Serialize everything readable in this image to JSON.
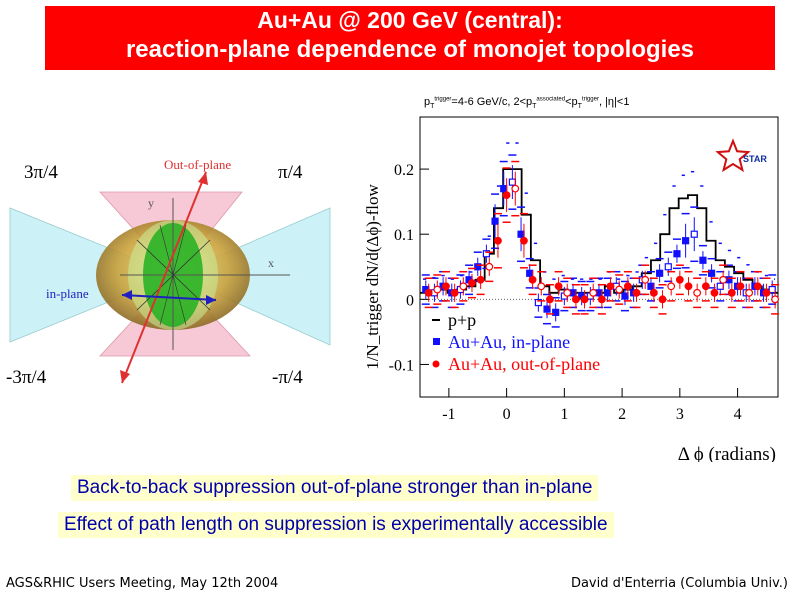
{
  "title": {
    "line1": "Au+Au @ 200 GeV (central):",
    "line2": "reaction-plane dependence of monojet topologies"
  },
  "diagram": {
    "angles": {
      "top_left": "3π/4",
      "top_right": "π/4",
      "bottom_left": "-3π/4",
      "bottom_right": "-π/4"
    },
    "labels": {
      "out_of_plane": "Out-of-plane",
      "in_plane": "in-plane",
      "axis_x": "x",
      "axis_y": "y"
    },
    "colors": {
      "in_plane_cone": "#ccf2f7",
      "out_of_plane_cone": "#f7c8d6",
      "overlap_ellipsoid": "#c9a13a",
      "inner_region": "#20b020",
      "out_arrow": "#e03030",
      "in_arrow": "#2020c0"
    }
  },
  "chart_data": {
    "type": "scatter",
    "subtitle_parts": {
      "p1": "p",
      "s1": "T",
      "sup1": "trigger",
      "p2": "=4-6 GeV/c, 2<p",
      "s2": "T",
      "sup2": "associated",
      "p3": "<p",
      "s3": "T",
      "sup3": "trigger",
      "p4": ", |η|<1"
    },
    "ylabel": "1/N_trigger dN/d(Δϕ)-flow",
    "xlabel": "Δ ϕ (radians)",
    "xlim": [
      -1.5,
      4.7
    ],
    "ylim": [
      -0.15,
      0.28
    ],
    "xticks": [
      -1,
      0,
      1,
      2,
      3,
      4
    ],
    "yticks": [
      {
        "value": -0.1,
        "label": "-0.1"
      },
      {
        "value": 0,
        "label": "0"
      },
      {
        "value": 0.1,
        "label": "0.1"
      },
      {
        "value": 0.2,
        "label": "0.2"
      }
    ],
    "logo": "STAR",
    "legend": [
      {
        "label": "p+p",
        "color": "#000000",
        "marker": "line"
      },
      {
        "label": "Au+Au, in-plane",
        "color": "#1010ff",
        "marker": "square"
      },
      {
        "label": "Au+Au, out-of-plane",
        "color": "#ff0000",
        "marker": "circle"
      }
    ],
    "series": [
      {
        "name": "p+p",
        "color": "#000000",
        "style": "step",
        "bin_width": 0.16,
        "x": [
          -1.5,
          -1.34,
          -1.18,
          -1.02,
          -0.86,
          -0.7,
          -0.54,
          -0.38,
          -0.22,
          -0.06,
          0.1,
          0.26,
          0.42,
          0.58,
          0.74,
          0.9,
          1.06,
          1.22,
          1.38,
          1.54,
          1.7,
          1.86,
          2.02,
          2.18,
          2.34,
          2.5,
          2.66,
          2.82,
          2.98,
          3.14,
          3.3,
          3.46,
          3.62,
          3.78,
          3.94,
          4.1,
          4.26,
          4.42,
          4.58
        ],
        "y": [
          0.01,
          0.012,
          0.015,
          0.01,
          0.015,
          0.02,
          0.03,
          0.07,
          0.14,
          0.2,
          0.2,
          0.13,
          0.06,
          0.02,
          0.01,
          0.015,
          0.01,
          0.01,
          0.01,
          0.01,
          0.02,
          0.01,
          0.015,
          0.02,
          0.04,
          0.06,
          0.1,
          0.14,
          0.155,
          0.16,
          0.14,
          0.09,
          0.06,
          0.05,
          0.04,
          0.03,
          0.02,
          0.015,
          0.01
        ]
      },
      {
        "name": "Au+Au, in-plane",
        "color": "#1010ff",
        "marker": "square",
        "x": [
          -1.4,
          -1.25,
          -1.1,
          -0.95,
          -0.8,
          -0.65,
          -0.5,
          -0.35,
          -0.2,
          -0.05,
          0.1,
          0.25,
          0.4,
          0.55,
          0.7,
          0.85,
          1.0,
          1.15,
          1.3,
          1.45,
          1.6,
          1.75,
          1.9,
          2.05,
          2.2,
          2.35,
          2.5,
          2.65,
          2.8,
          2.95,
          3.1,
          3.25,
          3.4,
          3.55,
          3.7,
          3.85,
          4.0,
          4.15,
          4.3,
          4.45,
          4.6
        ],
        "y": [
          0.015,
          0.01,
          0.02,
          0.01,
          0.015,
          0.03,
          0.05,
          0.07,
          0.12,
          0.17,
          0.18,
          0.1,
          0.04,
          -0.005,
          -0.015,
          -0.02,
          0.005,
          0.01,
          0.005,
          0.005,
          0.01,
          0.01,
          0.02,
          0.005,
          0.01,
          0.03,
          0.02,
          0.04,
          0.05,
          0.07,
          0.09,
          0.1,
          0.06,
          0.04,
          0.02,
          0.03,
          0.02,
          0.01,
          0.02,
          0.01,
          0.015
        ]
      },
      {
        "name": "Au+Au, out-of-plane",
        "color": "#ff0000",
        "marker": "circle",
        "x": [
          -1.35,
          -1.2,
          -1.05,
          -0.9,
          -0.75,
          -0.6,
          -0.45,
          -0.3,
          -0.15,
          0.0,
          0.15,
          0.3,
          0.45,
          0.6,
          0.75,
          0.9,
          1.05,
          1.2,
          1.35,
          1.5,
          1.65,
          1.8,
          1.95,
          2.1,
          2.25,
          2.4,
          2.55,
          2.7,
          2.85,
          3.0,
          3.15,
          3.3,
          3.45,
          3.6,
          3.75,
          3.9,
          4.05,
          4.2,
          4.35,
          4.5,
          4.65
        ],
        "y": [
          0.01,
          0.015,
          0.02,
          0.01,
          0.02,
          0.025,
          0.03,
          0.05,
          0.09,
          0.16,
          0.17,
          0.09,
          0.03,
          0.02,
          0.0,
          0.02,
          0.01,
          0.0,
          0.0,
          0.01,
          0.0,
          0.02,
          0.015,
          0.02,
          0.01,
          0.03,
          0.01,
          0.0,
          0.02,
          0.03,
          0.02,
          0.01,
          0.02,
          0.01,
          0.03,
          0.01,
          0.02,
          0.01,
          0.02,
          0.01,
          0.0
        ]
      }
    ]
  },
  "conclusions": {
    "line1": "Back-to-back suppression out-of-plane stronger than in-plane",
    "line2": "Effect of path length on suppression is experimentally accessible"
  },
  "footer": {
    "left": "AGS&RHIC Users Meeting, May 12th 2004",
    "right": "David d'Enterria (Columbia Univ.)"
  }
}
